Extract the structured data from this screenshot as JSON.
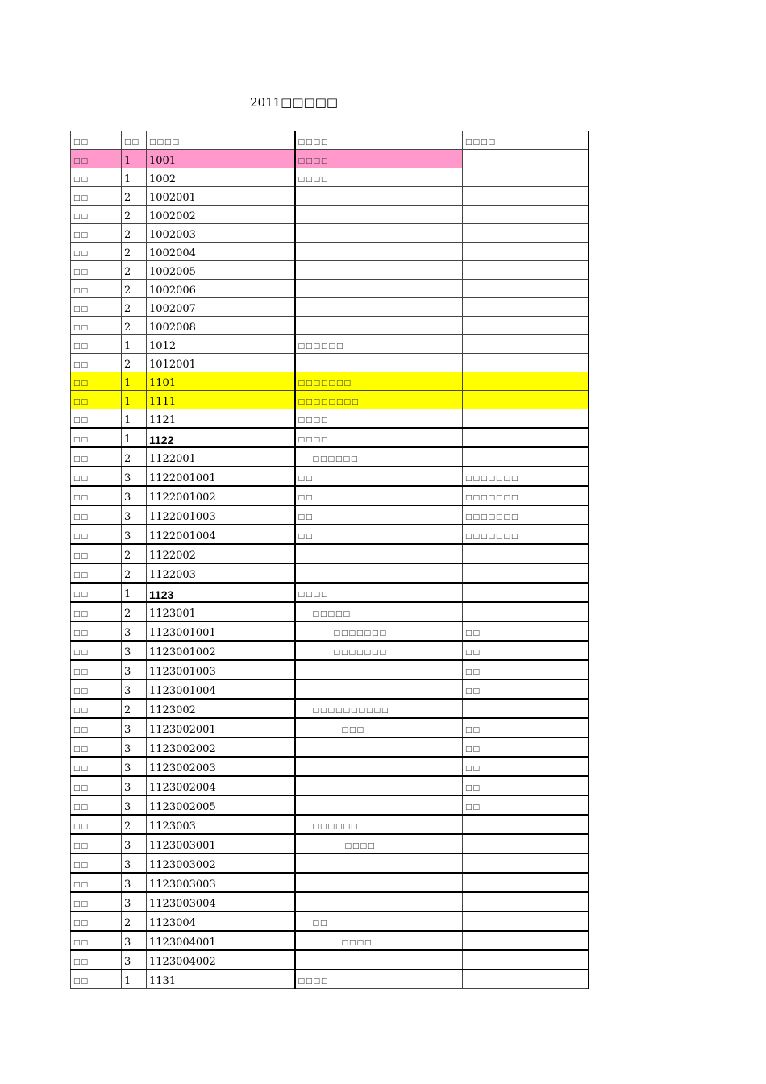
{
  "title": "2011□□□□□",
  "header": [
    "□□",
    "□□",
    "□□□□",
    "□□□□",
    "□□□□"
  ],
  "rows": [
    {
      "c1": "□□",
      "c2": "1",
      "c3": "1001",
      "c4": "□□□□",
      "c5": "",
      "hl": "pink"
    },
    {
      "c1": "□□",
      "c2": "1",
      "c3": "1002",
      "c4": "□□□□",
      "c5": ""
    },
    {
      "c1": "□□",
      "c2": "2",
      "c3": "1002001",
      "c4": "",
      "c5": ""
    },
    {
      "c1": "□□",
      "c2": "2",
      "c3": "1002002",
      "c4": "",
      "c5": ""
    },
    {
      "c1": "□□",
      "c2": "2",
      "c3": "1002003",
      "c4": "",
      "c5": ""
    },
    {
      "c1": "□□",
      "c2": "2",
      "c3": "1002004",
      "c4": "",
      "c5": ""
    },
    {
      "c1": "□□",
      "c2": "2",
      "c3": "1002005",
      "c4": "",
      "c5": ""
    },
    {
      "c1": "□□",
      "c2": "2",
      "c3": "1002006",
      "c4": "",
      "c5": ""
    },
    {
      "c1": "□□",
      "c2": "2",
      "c3": "1002007",
      "c4": "",
      "c5": ""
    },
    {
      "c1": "□□",
      "c2": "2",
      "c3": "1002008",
      "c4": "",
      "c5": ""
    },
    {
      "c1": "□□",
      "c2": "1",
      "c3": "1012",
      "c4": "□□□□□□",
      "c5": ""
    },
    {
      "c1": "□□",
      "c2": "2",
      "c3": "1012001",
      "c4": "",
      "c5": ""
    },
    {
      "c1": "□□",
      "c2": "1",
      "c3": "1101",
      "c4": "□□□□□□□",
      "c5": "",
      "hl": "yellow"
    },
    {
      "c1": "□□",
      "c2": "1",
      "c3": "1111",
      "c4": "□□□□□□□□",
      "c5": "",
      "hl": "yellow"
    },
    {
      "c1": "□□",
      "c2": "1",
      "c3": "1121",
      "c4": "□□□□",
      "c5": ""
    },
    {
      "c1": "□□",
      "c2": "1",
      "c3": "1122",
      "c4": "□□□□",
      "c5": "",
      "bold": true
    },
    {
      "c1": "□□",
      "c2": "2",
      "c3": "1122001",
      "c4": "□□□□□□",
      "c5": "",
      "indent": 1
    },
    {
      "c1": "□□",
      "c2": "3",
      "c3": "1122001001",
      "c4": "□□",
      "c5": "□□□□□□□"
    },
    {
      "c1": "□□",
      "c2": "3",
      "c3": "1122001002",
      "c4": "□□",
      "c5": "□□□□□□□"
    },
    {
      "c1": "□□",
      "c2": "3",
      "c3": "1122001003",
      "c4": "□□",
      "c5": "□□□□□□□"
    },
    {
      "c1": "□□",
      "c2": "3",
      "c3": "1122001004",
      "c4": "□□",
      "c5": "□□□□□□□"
    },
    {
      "c1": "□□",
      "c2": "2",
      "c3": "1122002",
      "c4": "",
      "c5": ""
    },
    {
      "c1": "□□",
      "c2": "2",
      "c3": "1122003",
      "c4": "",
      "c5": ""
    },
    {
      "c1": "□□",
      "c2": "1",
      "c3": "1123",
      "c4": "□□□□",
      "c5": "",
      "bold": true
    },
    {
      "c1": "□□",
      "c2": "2",
      "c3": "1123001",
      "c4": "□□□□□",
      "c5": "",
      "indent": 1
    },
    {
      "c1": "□□",
      "c2": "3",
      "c3": "1123001001",
      "c4": "□□□□□□□",
      "c5": "□□",
      "indent": 2
    },
    {
      "c1": "□□",
      "c2": "3",
      "c3": "1123001002",
      "c4": "□□□□□□□",
      "c5": "□□",
      "indent": 2
    },
    {
      "c1": "□□",
      "c2": "3",
      "c3": "1123001003",
      "c4": "",
      "c5": "□□"
    },
    {
      "c1": "□□",
      "c2": "3",
      "c3": "1123001004",
      "c4": "",
      "c5": "□□"
    },
    {
      "c1": "□□",
      "c2": "2",
      "c3": "1123002",
      "c4": "□□□□□□□□□□",
      "c5": "",
      "indent": 1
    },
    {
      "c1": "□□",
      "c2": "3",
      "c3": "1123002001",
      "c4": "□□□",
      "c5": "□□",
      "indent": 3
    },
    {
      "c1": "□□",
      "c2": "3",
      "c3": "1123002002",
      "c4": "",
      "c5": "□□"
    },
    {
      "c1": "□□",
      "c2": "3",
      "c3": "1123002003",
      "c4": "",
      "c5": "□□"
    },
    {
      "c1": "□□",
      "c2": "3",
      "c3": "1123002004",
      "c4": "",
      "c5": "□□"
    },
    {
      "c1": "□□",
      "c2": "3",
      "c3": "1123002005",
      "c4": "",
      "c5": "□□"
    },
    {
      "c1": "□□",
      "c2": "2",
      "c3": "1123003",
      "c4": "□□□□□□",
      "c5": "",
      "indent": 1
    },
    {
      "c1": "□□",
      "c2": "3",
      "c3": "1123003001",
      "c4": "□□□□",
      "c5": "",
      "indent": 4
    },
    {
      "c1": "□□",
      "c2": "3",
      "c3": "1123003002",
      "c4": "",
      "c5": ""
    },
    {
      "c1": "□□",
      "c2": "3",
      "c3": "1123003003",
      "c4": "",
      "c5": ""
    },
    {
      "c1": "□□",
      "c2": "3",
      "c3": "1123003004",
      "c4": "",
      "c5": ""
    },
    {
      "c1": "□□",
      "c2": "2",
      "c3": "1123004",
      "c4": "□□",
      "c5": "",
      "indent": 1
    },
    {
      "c1": "□□",
      "c2": "3",
      "c3": "1123004001",
      "c4": "□□□□",
      "c5": "",
      "indent": 3
    },
    {
      "c1": "□□",
      "c2": "3",
      "c3": "1123004002",
      "c4": "",
      "c5": ""
    },
    {
      "c1": "□□",
      "c2": "1",
      "c3": "1131",
      "c4": "□□□□",
      "c5": ""
    }
  ],
  "colors": {
    "pink_highlight": "#ff99cc",
    "yellow_highlight": "#ffff00"
  }
}
